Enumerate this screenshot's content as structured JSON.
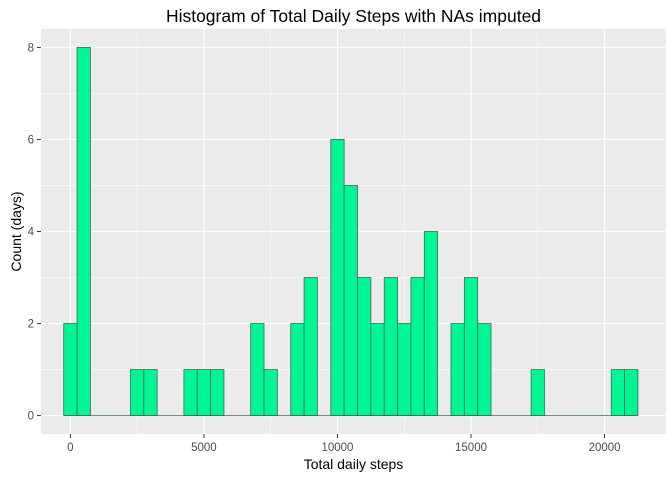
{
  "colors": {
    "panel_background": "#EBEBEB",
    "grid_major": "#FFFFFF",
    "bar_fill": "#00F593",
    "bar_outline": "#3F6B57",
    "tick_color": "#333333"
  },
  "chart_data": {
    "type": "bar",
    "title": "Histogram of Total Daily Steps with NAs imputed",
    "xlabel": "Total daily steps",
    "ylabel": "Count (days)",
    "bin_width": 500,
    "x": [
      0,
      500,
      2500,
      3000,
      4500,
      5000,
      5500,
      7000,
      7500,
      8500,
      9000,
      10000,
      10500,
      11000,
      11500,
      12000,
      12500,
      13000,
      13500,
      14500,
      15000,
      15500,
      17500,
      20500,
      21000
    ],
    "values": [
      2,
      8,
      1,
      1,
      1,
      1,
      1,
      2,
      1,
      2,
      3,
      6,
      5,
      3,
      2,
      3,
      2,
      3,
      4,
      2,
      3,
      2,
      1,
      1,
      1
    ],
    "xlim": [
      -1100,
      22300
    ],
    "ylim": [
      -0.4,
      8.4
    ],
    "x_ticks": [
      0,
      5000,
      10000,
      15000,
      20000
    ],
    "x_tick_labels": [
      "0",
      "5000",
      "10000",
      "15000",
      "20000"
    ],
    "y_ticks": [
      0,
      2,
      4,
      6,
      8
    ],
    "y_tick_labels": [
      "0",
      "2",
      "4",
      "6",
      "8"
    ],
    "grid": true,
    "legend": "none"
  }
}
